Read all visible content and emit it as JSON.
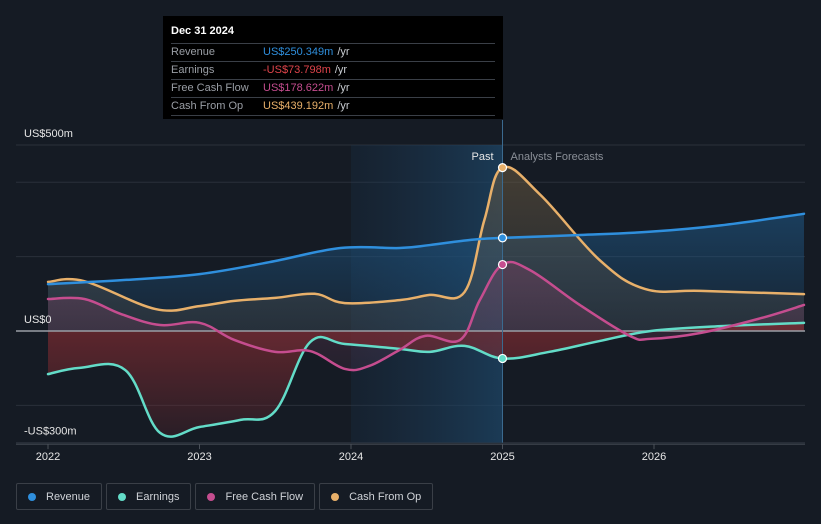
{
  "tooltip": {
    "date": "Dec 31 2024",
    "rows": [
      {
        "label": "Revenue",
        "value": "US$250.349m",
        "unit": "/yr",
        "color": "#2f8fdd"
      },
      {
        "label": "Earnings",
        "value": "-US$73.798m",
        "unit": "/yr",
        "color": "#e0444b"
      },
      {
        "label": "Free Cash Flow",
        "value": "US$178.622m",
        "unit": "/yr",
        "color": "#c54d8f"
      },
      {
        "label": "Cash From Op",
        "value": "US$439.192m",
        "unit": "/yr",
        "color": "#e8b06a"
      }
    ]
  },
  "legend": [
    {
      "label": "Revenue",
      "color": "#2f8fdd"
    },
    {
      "label": "Earnings",
      "color": "#63dcc8"
    },
    {
      "label": "Free Cash Flow",
      "color": "#c54d8f"
    },
    {
      "label": "Cash From Op",
      "color": "#e8b06a"
    }
  ],
  "chart_data": {
    "type": "line",
    "title": "",
    "xlabel": "",
    "ylabel": "",
    "y_unit": "US$ millions",
    "ylim": [
      -300,
      500
    ],
    "xlim": [
      2021.82,
      2026.99
    ],
    "y_tick_labels": [
      {
        "value": 500,
        "label": "US$500m"
      },
      {
        "value": 0,
        "label": "US$0"
      },
      {
        "value": -300,
        "label": "-US$300m"
      }
    ],
    "y_gridlines": [
      500,
      400,
      200,
      0,
      -200,
      -300
    ],
    "x_ticks": [
      {
        "value": 2022,
        "label": "2022"
      },
      {
        "value": 2023,
        "label": "2023"
      },
      {
        "value": 2024,
        "label": "2024"
      },
      {
        "value": 2025,
        "label": "2025"
      },
      {
        "value": 2026,
        "label": "2026"
      }
    ],
    "past_region": [
      2024.0,
      2025.0
    ],
    "divider": 2025.0,
    "past_label": "Past",
    "forecast_label": "Analysts Forecasts",
    "grid": true,
    "legend_position": "bottom-left",
    "series": [
      {
        "name": "Revenue",
        "color": "#2f8fdd",
        "x": [
          2022.0,
          2022.5,
          2023.0,
          2023.46,
          2023.93,
          2024.32,
          2024.52,
          2024.79,
          2025.0,
          2025.51,
          2025.98,
          2026.44,
          2026.99
        ],
        "values": [
          126,
          137,
          153,
          185,
          223,
          223,
          231,
          245,
          250.3,
          258,
          267,
          284,
          315
        ]
      },
      {
        "name": "Earnings",
        "color": "#63dcc8",
        "x": [
          2022.0,
          2022.21,
          2022.51,
          2022.74,
          2023.0,
          2023.27,
          2023.5,
          2023.73,
          2023.96,
          2024.32,
          2024.52,
          2024.75,
          2025.0,
          2025.31,
          2025.64,
          2025.98,
          2026.44,
          2026.99
        ],
        "values": [
          -116,
          -99,
          -105,
          -274,
          -258,
          -239,
          -215,
          -30,
          -35,
          -48,
          -56,
          -40,
          -73.8,
          -56,
          -27,
          0,
          13,
          22
        ]
      },
      {
        "name": "Free Cash Flow",
        "color": "#c54d8f",
        "x": [
          2022.0,
          2022.24,
          2022.48,
          2022.74,
          2023.0,
          2023.23,
          2023.5,
          2023.73,
          2023.96,
          2024.12,
          2024.32,
          2024.49,
          2024.72,
          2024.85,
          2025.0,
          2025.18,
          2025.51,
          2025.84,
          2025.98,
          2026.31,
          2026.71,
          2026.99
        ],
        "values": [
          86,
          86,
          46,
          16,
          22,
          -24,
          -56,
          -54,
          -102,
          -94,
          -51,
          -13,
          -24,
          83,
          178.6,
          164,
          70,
          -13,
          -21,
          -5,
          35,
          70
        ]
      },
      {
        "name": "Cash From Op",
        "color": "#e8b06a",
        "x": [
          2022.0,
          2022.24,
          2022.71,
          2023.0,
          2023.23,
          2023.5,
          2023.76,
          2023.96,
          2024.32,
          2024.52,
          2024.75,
          2024.88,
          2025.0,
          2025.25,
          2025.64,
          2025.94,
          2026.31,
          2026.99
        ],
        "values": [
          132,
          134,
          59,
          67,
          81,
          89,
          100,
          75,
          83,
          97,
          105,
          298,
          439.2,
          366,
          191,
          113,
          108,
          99
        ]
      }
    ],
    "highlight_points": [
      {
        "series": "Cash From Op",
        "x": 2025.0,
        "value": 439.192
      },
      {
        "series": "Revenue",
        "x": 2025.0,
        "value": 250.349
      },
      {
        "series": "Free Cash Flow",
        "x": 2025.0,
        "value": 178.622
      },
      {
        "series": "Earnings",
        "x": 2025.0,
        "value": -73.798
      }
    ]
  }
}
